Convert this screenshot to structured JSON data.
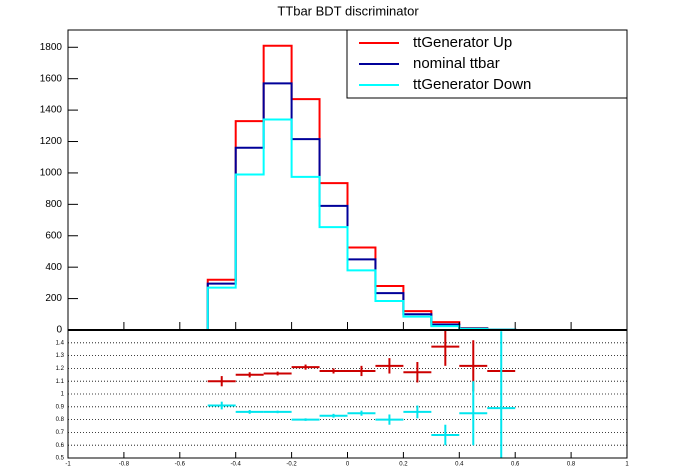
{
  "chart_data": [
    {
      "type": "histogram",
      "title": "TTbar BDT discriminator",
      "bins": [
        -1,
        -0.9,
        -0.8,
        -0.7,
        -0.6,
        -0.5,
        -0.4,
        -0.3,
        -0.2,
        -0.1,
        0,
        0.1,
        0.2,
        0.3,
        0.4,
        0.5,
        0.6,
        0.7,
        0.8,
        0.9,
        1
      ],
      "series": [
        {
          "name": "ttGenerator Up",
          "color": "#ff0000",
          "values": [
            0,
            0,
            0,
            0,
            0,
            320,
            1330,
            1810,
            1470,
            935,
            525,
            280,
            120,
            50,
            12,
            3,
            0,
            0,
            0,
            0
          ]
        },
        {
          "name": "nominal ttbar",
          "color": "#000099",
          "values": [
            0,
            0,
            0,
            0,
            0,
            295,
            1160,
            1570,
            1215,
            790,
            450,
            235,
            100,
            35,
            10,
            2,
            0,
            0,
            0,
            0
          ]
        },
        {
          "name": "ttGenerator Down",
          "color": "#00ffff",
          "values": [
            0,
            0,
            0,
            0,
            0,
            270,
            990,
            1340,
            975,
            655,
            380,
            185,
            85,
            25,
            8,
            2,
            0,
            0,
            0,
            0
          ]
        }
      ],
      "xlim": [
        -1,
        1
      ],
      "ylim": [
        0,
        1910
      ],
      "yticks": [
        0,
        200,
        400,
        600,
        800,
        1000,
        1200,
        1400,
        1600,
        1800
      ],
      "legend": "top-right"
    },
    {
      "type": "errorbar",
      "x": [
        -0.45,
        -0.35,
        -0.25,
        -0.15,
        -0.05,
        0.05,
        0.15,
        0.25,
        0.35,
        0.45,
        0.55
      ],
      "xerr": 0.05,
      "series": [
        {
          "color": "#cc0000",
          "values": [
            1.1,
            1.15,
            1.16,
            1.21,
            1.18,
            1.18,
            1.22,
            1.17,
            1.37,
            1.22,
            1.18
          ],
          "errors": [
            0.04,
            0.02,
            0.015,
            0.02,
            0.02,
            0.04,
            0.06,
            0.08,
            0.15,
            0.2,
            0
          ]
        },
        {
          "color": "#00e5ee",
          "values": [
            0.91,
            0.86,
            0.86,
            0.8,
            0.83,
            0.85,
            0.8,
            0.86,
            0.68,
            0.85,
            0.89
          ],
          "errors": [
            0.03,
            0.015,
            0.01,
            0.01,
            0.015,
            0.02,
            0.04,
            0.05,
            0.08,
            0.25,
            0.6
          ]
        }
      ],
      "xlim": [
        -1,
        1
      ],
      "xticks": [
        -1,
        -0.8,
        -0.6,
        -0.4,
        -0.2,
        0,
        0.2,
        0.4,
        0.6,
        0.8,
        1
      ],
      "ylim": [
        0.5,
        1.5
      ],
      "yticks": [
        0.5,
        0.6,
        0.7,
        0.8,
        0.9,
        1,
        1.1,
        1.2,
        1.3,
        1.4
      ],
      "grid": true
    }
  ]
}
